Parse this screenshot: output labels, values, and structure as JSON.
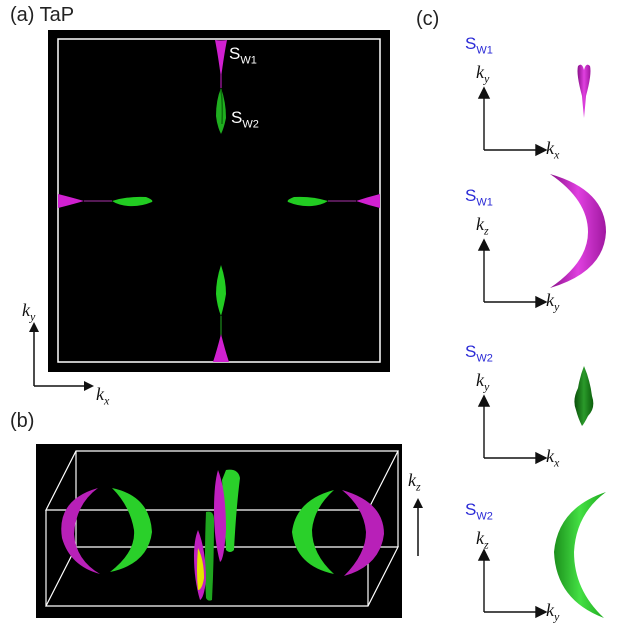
{
  "panels": {
    "a": {
      "label": "(a)",
      "material": "TaP"
    },
    "b": {
      "label": "(b)"
    },
    "c": {
      "label": "(c)"
    }
  },
  "labels": {
    "s_base": "S",
    "w1": "W1",
    "w2": "W2",
    "k": "k",
    "x": "x",
    "y": "y",
    "z": "z"
  },
  "colors": {
    "w1_surface": "#d020d0",
    "w2_surface": "#22cc22",
    "yellow_surface": "#e6e600",
    "label_blue": "#2a2ad6",
    "background": "#000000"
  }
}
